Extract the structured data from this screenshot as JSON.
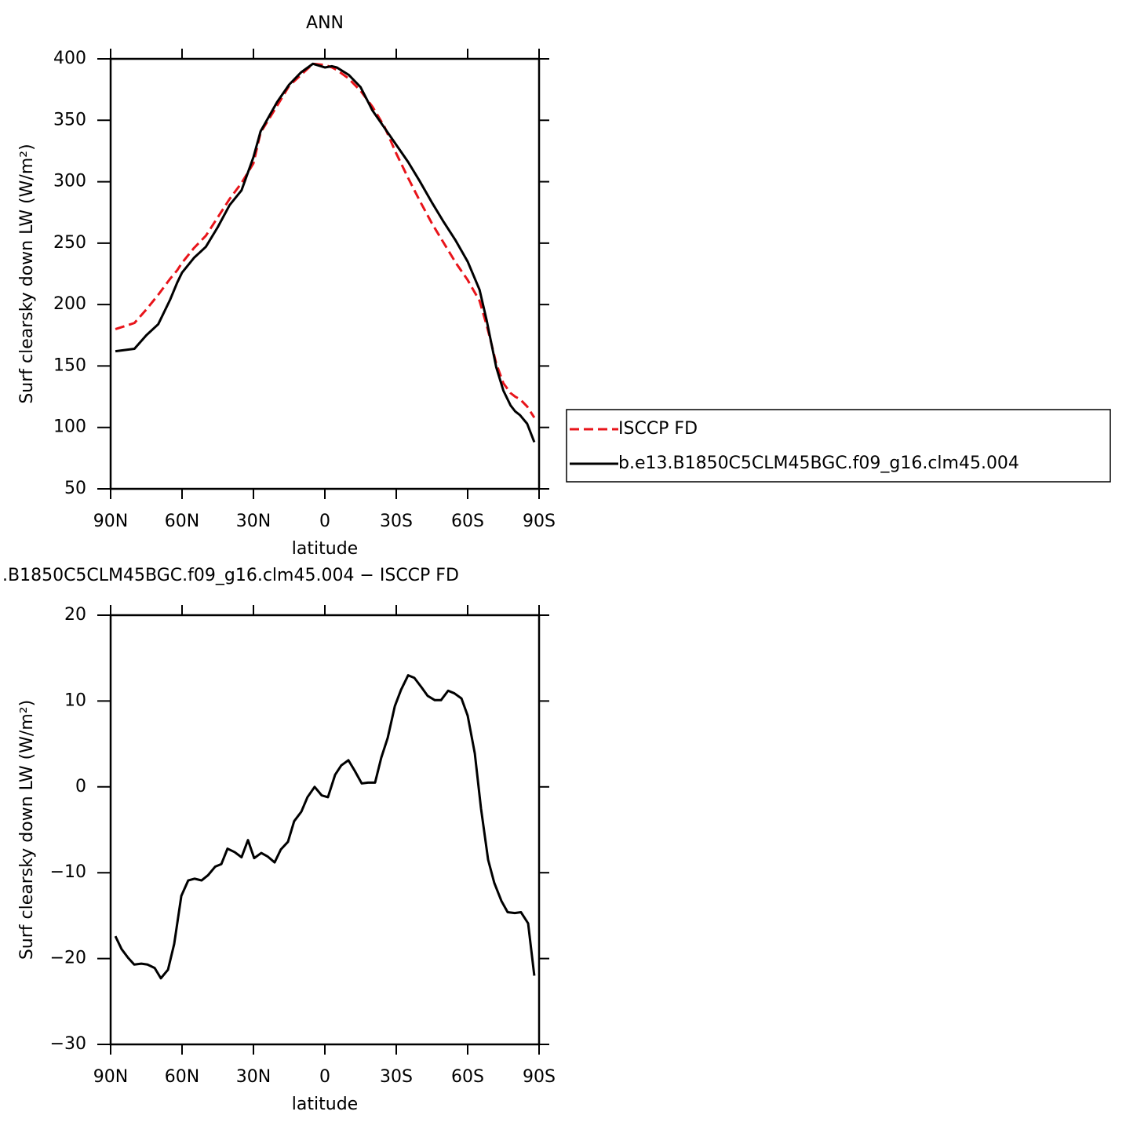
{
  "chart_data": [
    {
      "type": "line",
      "title": "ANN",
      "xlabel": "latitude",
      "ylabel": "Surf clearsky down LW (W/m²)",
      "xlim": [
        90,
        -90
      ],
      "ylim": [
        50,
        400
      ],
      "xticks": [
        {
          "value": 90,
          "label": "90N"
        },
        {
          "value": 60,
          "label": "60N"
        },
        {
          "value": 30,
          "label": "30N"
        },
        0,
        {
          "value": -30,
          "label": "30S"
        },
        {
          "value": -60,
          "label": "60S"
        },
        {
          "value": -90,
          "label": "90S"
        }
      ],
      "yticks": [
        50,
        100,
        150,
        200,
        250,
        300,
        350,
        400
      ],
      "x": [
        88,
        80,
        75,
        70,
        65,
        62,
        60,
        55,
        50,
        45,
        40,
        35,
        30,
        27,
        20,
        15,
        10,
        5,
        0,
        -3,
        -5,
        -10,
        -15,
        -20,
        -25,
        -30,
        -35,
        -40,
        -45,
        -50,
        -55,
        -60,
        -65,
        -68,
        -70,
        -72,
        -75,
        -78,
        -80,
        -82,
        -85,
        -88
      ],
      "series": [
        {
          "name": "ISCCP FD",
          "color": "#e8141a",
          "line_style": "dashed",
          "values": [
            180,
            185,
            196,
            208,
            221,
            228,
            234,
            246,
            256,
            271,
            286,
            299,
            315,
            340,
            362,
            378,
            387,
            396,
            395,
            393,
            391,
            384,
            374,
            361,
            345,
            323,
            303,
            284,
            266,
            250,
            234,
            220,
            203,
            183,
            168,
            152,
            136,
            128,
            125,
            123,
            117,
            108
          ]
        },
        {
          "name": "b.e13.B1850C5CLM45BGC.f09_g16.clm45.004",
          "color": "#000000",
          "line_style": "solid",
          "values": [
            162,
            164,
            175,
            184,
            204,
            218,
            226,
            238,
            247,
            263,
            281,
            293,
            320,
            341,
            365,
            379,
            389,
            396,
            393,
            394,
            393,
            387,
            377,
            358,
            344,
            330,
            316,
            300,
            283,
            267,
            252,
            235,
            212,
            187,
            168,
            149,
            130,
            118,
            113,
            110,
            103,
            88
          ]
        }
      ]
    },
    {
      "type": "line",
      "title": ".B1850C5CLM45BGC.f09_g16.clm45.004 − ISCCP FD",
      "xlabel": "latitude",
      "ylabel": "Surf clearsky down LW (W/m²)",
      "xlim": [
        90,
        -90
      ],
      "ylim": [
        -30,
        20
      ],
      "xticks": [
        {
          "value": 90,
          "label": "90N"
        },
        {
          "value": 60,
          "label": "60N"
        },
        {
          "value": 30,
          "label": "30N"
        },
        0,
        {
          "value": -30,
          "label": "30S"
        },
        {
          "value": -60,
          "label": "60S"
        },
        {
          "value": -90,
          "label": "90S"
        }
      ],
      "yticks": [
        {
          "value": -30,
          "label": "−30"
        },
        {
          "value": -20,
          "label": "−20"
        },
        {
          "value": -10,
          "label": "−10"
        },
        0,
        10,
        20
      ],
      "color": "#000000",
      "x": [
        88,
        85.4,
        82.7,
        80.1,
        77.1,
        74.5,
        71.5,
        68.9,
        65.9,
        63.3,
        60.3,
        57.4,
        54.7,
        51.8,
        49.1,
        46.1,
        43.5,
        40.9,
        37.9,
        35,
        32.3,
        29.7,
        26.7,
        24.1,
        21.1,
        18.5,
        15.5,
        12.9,
        9.9,
        7.3,
        4.3,
        1.3,
        -1.3,
        -4.3,
        -6.9,
        -9.9,
        -12.5,
        -15.5,
        -18.1,
        -21.1,
        -23.7,
        -26.4,
        -29.4,
        -32,
        -35,
        -37.6,
        -40.6,
        -43.2,
        -46.2,
        -48.8,
        -51.8,
        -54.4,
        -57.4,
        -60,
        -63,
        -65.6,
        -68.6,
        -71.2,
        -74.2,
        -76.8,
        -79.8,
        -82.4,
        -85.4,
        -88
      ],
      "values": [
        -17.4,
        -18.9,
        -19.9,
        -20.7,
        -20.6,
        -20.7,
        -21.1,
        -22.3,
        -21.3,
        -18.3,
        -12.7,
        -10.9,
        -10.7,
        -10.9,
        -10.3,
        -9.3,
        -9.0,
        -7.2,
        -7.6,
        -8.2,
        -6.2,
        -8.3,
        -7.7,
        -8.1,
        -8.8,
        -7.3,
        -6.4,
        -4.0,
        -2.9,
        -1.2,
        0,
        -1.0,
        -1.2,
        1.4,
        2.5,
        3.1,
        1.9,
        0.4,
        0.5,
        0.5,
        3.4,
        5.7,
        9.4,
        11.3,
        13.0,
        12.7,
        11.6,
        10.6,
        10.1,
        10.1,
        11.2,
        10.9,
        10.3,
        8.3,
        3.9,
        -2.5,
        -8.5,
        -11.2,
        -13.3,
        -14.6,
        -14.7,
        -14.6,
        -15.9,
        -22.0
      ]
    }
  ]
}
